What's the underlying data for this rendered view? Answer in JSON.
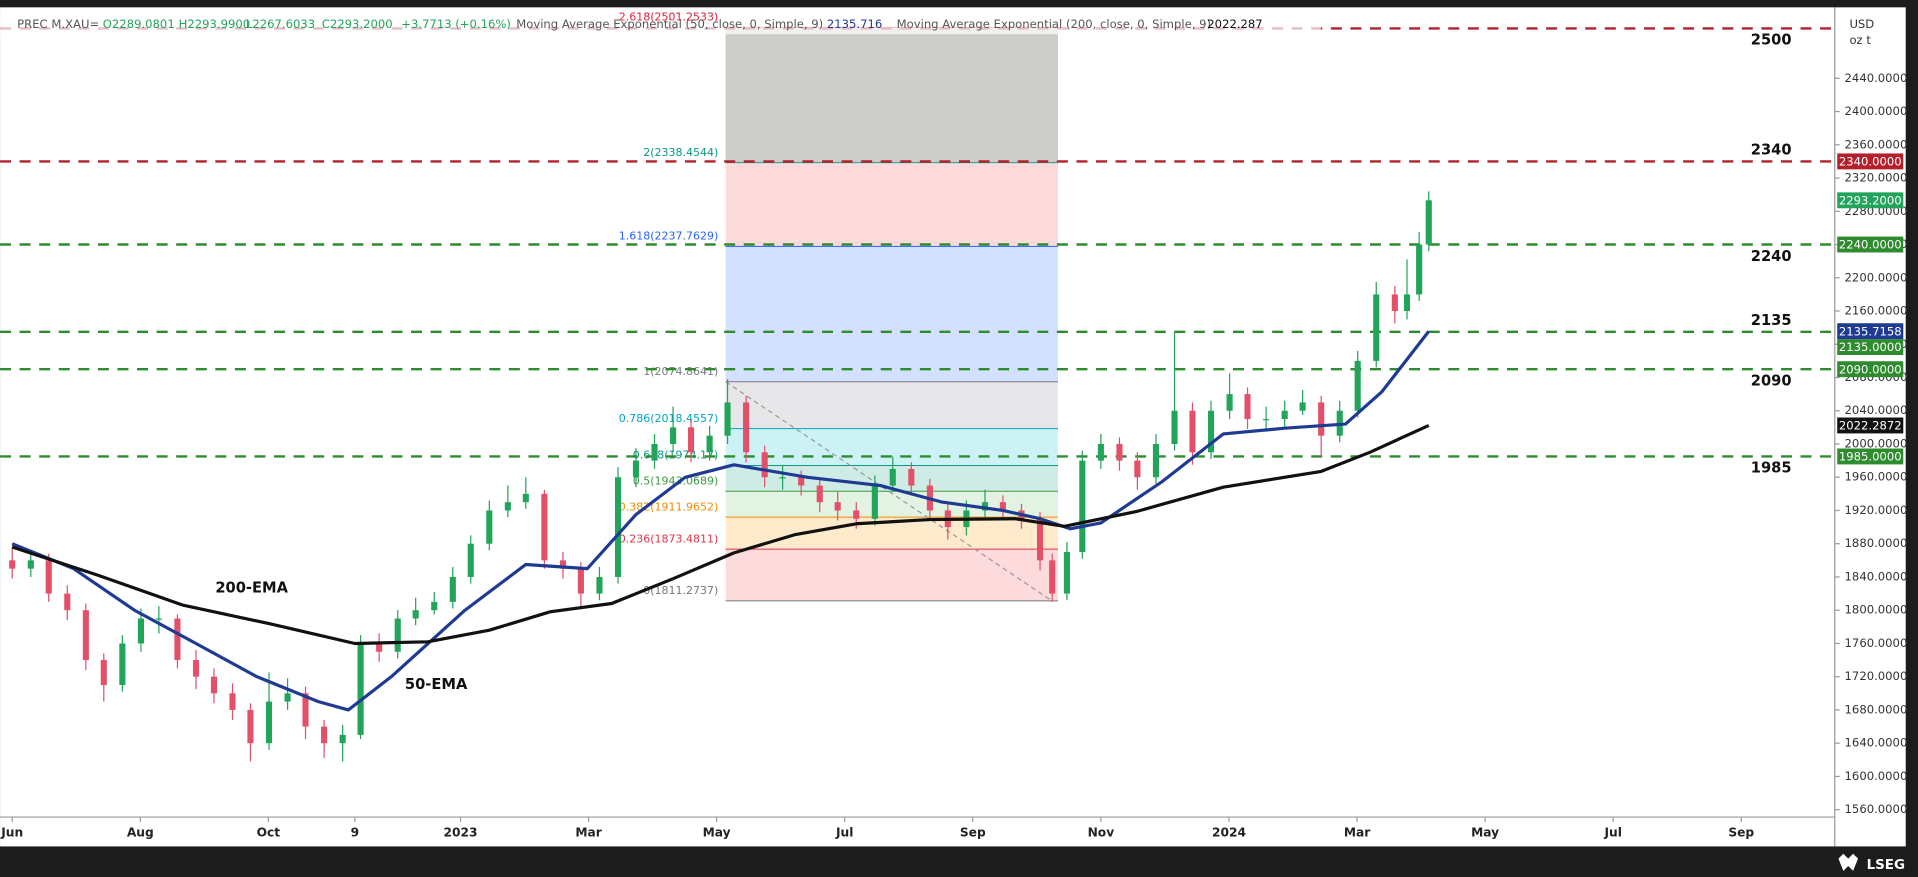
{
  "chart_data": {
    "type": "candlestick",
    "header": {
      "symbol": "PREC M.XAU=",
      "ohlc": [
        "O2289.0801",
        "H2293.9900",
        "L2267.6033",
        "C2293.2000",
        "+3.7713 (+0.16%)"
      ]
    },
    "unit": [
      "USD",
      "oz t"
    ],
    "brand": "LSEG",
    "xlim": [
      -0.19,
      28.46
    ],
    "ylim": [
      1551.1,
      2519.5
    ],
    "xticks": [
      {
        "value": 0,
        "label": "Jun"
      },
      {
        "value": 2,
        "label": "Aug"
      },
      {
        "value": 4,
        "label": "Oct"
      },
      {
        "value": 5.35,
        "label": "9"
      },
      {
        "value": 7,
        "label": "2023"
      },
      {
        "value": 9,
        "label": "Mar"
      },
      {
        "value": 11,
        "label": "May"
      },
      {
        "value": 13,
        "label": "Jul"
      },
      {
        "value": 15,
        "label": "Sep"
      },
      {
        "value": 17,
        "label": "Nov"
      },
      {
        "value": 19,
        "label": "2024"
      },
      {
        "value": 21,
        "label": "Mar"
      },
      {
        "value": 23,
        "label": "May"
      },
      {
        "value": 25,
        "label": "Jul"
      },
      {
        "value": 27,
        "label": "Sep"
      }
    ],
    "yticks": [
      {
        "value": 1560,
        "label": "1560.0000"
      },
      {
        "value": 1600,
        "label": "1600.0000"
      },
      {
        "value": 1640,
        "label": "1640.0000"
      },
      {
        "value": 1680,
        "label": "1680.0000"
      },
      {
        "value": 1720,
        "label": "1720.0000"
      },
      {
        "value": 1760,
        "label": "1760.0000"
      },
      {
        "value": 1800,
        "label": "1800.0000"
      },
      {
        "value": 1840,
        "label": "1840.0000"
      },
      {
        "value": 1880,
        "label": "1880.0000"
      },
      {
        "value": 1920,
        "label": "1920.0000"
      },
      {
        "value": 1960,
        "label": "1960.0000"
      },
      {
        "value": 2000,
        "label": "2000.0000"
      },
      {
        "value": 2040,
        "label": "2040.0000"
      },
      {
        "value": 2080,
        "label": "2080.0000"
      },
      {
        "value": 2120,
        "label": "2120.0000"
      },
      {
        "value": 2160,
        "label": "2160.0000"
      },
      {
        "value": 2200,
        "label": "2200.0000"
      },
      {
        "value": 2240,
        "label": "2240.0000"
      },
      {
        "value": 2280,
        "label": "2280.0000"
      },
      {
        "value": 2320,
        "label": "2320.0000"
      },
      {
        "value": 2360,
        "label": "2360.0000"
      },
      {
        "value": 2400,
        "label": "2400.0000"
      },
      {
        "value": 2440,
        "label": "2440.0000"
      }
    ],
    "candles": {
      "up_color": "#22a45a",
      "down_color": "#e2506a",
      "x": [
        0.0,
        0.29,
        0.57,
        0.86,
        1.15,
        1.43,
        1.72,
        2.01,
        2.29,
        2.58,
        2.87,
        3.15,
        3.44,
        3.72,
        4.01,
        4.3,
        4.58,
        4.87,
        5.16,
        5.44,
        5.73,
        6.02,
        6.3,
        6.59,
        6.88,
        7.16,
        7.45,
        7.74,
        8.02,
        8.31,
        8.6,
        8.88,
        9.17,
        9.46,
        9.74,
        10.03,
        10.32,
        10.6,
        10.89,
        11.17,
        11.46,
        11.75,
        12.03,
        12.32,
        12.61,
        12.89,
        13.18,
        13.47,
        13.75,
        14.04,
        14.33,
        14.61,
        14.9,
        15.19,
        15.47,
        15.76,
        16.05,
        16.24,
        16.47,
        16.71,
        17.0,
        17.29,
        17.57,
        17.86,
        18.15,
        18.43,
        18.72,
        19.01,
        19.29,
        19.58,
        19.87,
        20.15,
        20.44,
        20.73,
        21.01,
        21.3,
        21.59,
        21.78,
        21.97,
        22.12
      ],
      "open": [
        1860,
        1850,
        1860,
        1820,
        1800,
        1740,
        1710,
        1760,
        1790,
        1790,
        1740,
        1720,
        1700,
        1680,
        1640,
        1690,
        1700,
        1660,
        1640,
        1650,
        1760,
        1750,
        1790,
        1800,
        1810,
        1840,
        1880,
        1920,
        1930,
        1940,
        1860,
        1850,
        1820,
        1840,
        1960,
        1980,
        2000,
        2020,
        1990,
        2010,
        2050,
        1990,
        1960,
        1960,
        1950,
        1930,
        1920,
        1910,
        1950,
        1970,
        1950,
        1920,
        1900,
        1920,
        1930,
        1920,
        1910,
        1860,
        1820,
        1870,
        1980,
        2000,
        1980,
        1960,
        2000,
        2040,
        1990,
        2040,
        2060,
        2030,
        2030,
        2040,
        2050,
        2010,
        2040,
        2100,
        2180,
        2160,
        2180,
        2240
      ],
      "high": [
        1875,
        1872,
        1868,
        1830,
        1808,
        1748,
        1770,
        1802,
        1805,
        1795,
        1752,
        1730,
        1712,
        1688,
        1725,
        1718,
        1708,
        1668,
        1662,
        1770,
        1772,
        1800,
        1815,
        1822,
        1852,
        1890,
        1932,
        1950,
        1960,
        1945,
        1870,
        1858,
        1852,
        1972,
        1995,
        2012,
        2045,
        2030,
        2022,
        2078,
        2058,
        1998,
        1975,
        1968,
        1958,
        1942,
        1930,
        1962,
        1985,
        1978,
        1958,
        1928,
        1932,
        1945,
        1938,
        1928,
        1918,
        1868,
        1882,
        1992,
        2012,
        2008,
        1990,
        2012,
        2135,
        2050,
        2052,
        2085,
        2068,
        2045,
        2052,
        2065,
        2058,
        2052,
        2112,
        2195,
        2190,
        2222,
        2255,
        2304
      ],
      "low": [
        1838,
        1840,
        1810,
        1788,
        1728,
        1690,
        1702,
        1750,
        1772,
        1730,
        1705,
        1688,
        1668,
        1618,
        1632,
        1680,
        1645,
        1622,
        1618,
        1645,
        1738,
        1742,
        1782,
        1795,
        1802,
        1832,
        1872,
        1912,
        1922,
        1850,
        1838,
        1805,
        1812,
        1832,
        1948,
        1970,
        1990,
        1978,
        1980,
        2000,
        1978,
        1948,
        1945,
        1938,
        1918,
        1908,
        1898,
        1902,
        1942,
        1938,
        1908,
        1885,
        1890,
        1912,
        1908,
        1898,
        1848,
        1810,
        1812,
        1862,
        1970,
        1968,
        1945,
        1952,
        1992,
        1975,
        1982,
        2030,
        2018,
        2015,
        2020,
        2035,
        1985,
        2002,
        2032,
        2092,
        2145,
        2150,
        2172,
        2232
      ],
      "close": [
        1850,
        1860,
        1820,
        1800,
        1740,
        1710,
        1760,
        1790,
        1790,
        1740,
        1720,
        1700,
        1680,
        1640,
        1690,
        1700,
        1660,
        1640,
        1650,
        1760,
        1750,
        1790,
        1800,
        1810,
        1840,
        1880,
        1920,
        1930,
        1940,
        1860,
        1850,
        1820,
        1840,
        1960,
        1980,
        2000,
        2020,
        1990,
        2010,
        2050,
        1990,
        1960,
        1960,
        1950,
        1930,
        1920,
        1910,
        1950,
        1970,
        1950,
        1920,
        1900,
        1920,
        1930,
        1920,
        1910,
        1860,
        1820,
        1870,
        1980,
        2000,
        1980,
        1960,
        2000,
        2040,
        1990,
        2040,
        2060,
        2030,
        2030,
        2040,
        2050,
        2010,
        2040,
        2100,
        2180,
        2160,
        2180,
        2240,
        2293.2
      ]
    },
    "series": [
      {
        "name": "Moving Average Exponential (50, close, 0, Simple, 9)",
        "legend_value": "2135.716",
        "annotation": "50-EMA",
        "color": "#1f3a93",
        "x": [
          0,
          0.96,
          1.91,
          2.87,
          3.82,
          4.78,
          5.25,
          5.92,
          7.07,
          8.02,
          8.98,
          9.74,
          10.51,
          11.27,
          12.42,
          13.56,
          14.52,
          15.47,
          16.05,
          16.52,
          17.0,
          17.96,
          18.91,
          19.87,
          20.82,
          21.39,
          22.12
        ],
        "values": [
          1880,
          1850,
          1800,
          1760,
          1720,
          1690,
          1680,
          1720,
          1800,
          1855,
          1850,
          1915,
          1960,
          1975,
          1960,
          1950,
          1930,
          1920,
          1910,
          1898,
          1905,
          1955,
          2012,
          2019,
          2024,
          2063,
          2135.716
        ]
      },
      {
        "name": "Moving Average Exponential (200, close, 0, Simple, 9)",
        "legend_value": "2022.287",
        "annotation": "200-EMA",
        "color": "#111111",
        "x": [
          0,
          1.34,
          2.67,
          4.01,
          5.35,
          6.49,
          7.45,
          8.4,
          9.36,
          10.32,
          11.27,
          12.23,
          13.18,
          14.33,
          15.66,
          16.43,
          17.57,
          18.91,
          20.44,
          21.2,
          22.12
        ],
        "values": [
          1876,
          1842,
          1806,
          1784,
          1760,
          1762,
          1776,
          1798,
          1808,
          1838,
          1869,
          1891,
          1904,
          1909,
          1910,
          1901,
          1919,
          1948,
          1967,
          1990,
          2022.287
        ]
      }
    ],
    "horizontal_lines": {
      "values": [
        2500,
        2340,
        2240,
        2135,
        2090,
        1985
      ],
      "colors": [
        "#b3202c",
        "#b3202c",
        "#2e8b2e",
        "#2e8b2e",
        "#2e8b2e",
        "#2e8b2e"
      ]
    },
    "fibonacci": {
      "x_range": [
        11.14,
        16.33
      ],
      "levels": [
        {
          "value": 1811.2737,
          "label": "0(1811.2737)",
          "color": "#777777",
          "fill": "rgba(242,54,69,0.18)"
        },
        {
          "value": 1873.4811,
          "label": "0.236(1873.4811)",
          "color": "#e0324a",
          "fill": "rgba(255,152,0,0.2)"
        },
        {
          "value": 1911.9652,
          "label": "0.382(1911.9652)",
          "color": "#f08c00",
          "fill": "rgba(76,175,80,0.16)"
        },
        {
          "value": 1943.0689,
          "label": "0.5(1943.0689)",
          "color": "#3c9a40",
          "fill": "rgba(8,153,129,0.2)"
        },
        {
          "value": 1974.17,
          "label": "0.618(1974.17)",
          "color": "#089981",
          "fill": "rgba(0,188,212,0.2)"
        },
        {
          "value": 2018.4557,
          "label": "0.786(2018.4557)",
          "color": "#00a5c4",
          "fill": "rgba(120,123,134,0.18)"
        },
        {
          "value": 2074.8641,
          "label": "1(2074.8641)",
          "color": "#787b86",
          "fill": "rgba(41,98,255,0.2)"
        },
        {
          "value": 2237.7629,
          "label": "1.618(2237.7629)",
          "color": "#2962ff",
          "fill": "rgba(242,54,69,0.18)"
        },
        {
          "value": 2338.4544,
          "label": "2(2338.4544)",
          "color": "#089981",
          "fill": "rgba(120,123,110,0.38)"
        },
        {
          "value": 2501.2533,
          "label": "2.618(2501.2533)",
          "color": "#e0324a"
        }
      ]
    },
    "price_badges": [
      {
        "value": 2340,
        "label": "2340.0000",
        "color": "#b3202c"
      },
      {
        "value": 2293.2,
        "label": "2293.2000",
        "color": "#22a45a"
      },
      {
        "value": 2240,
        "label": "2240.0000",
        "color": "#2e8b2e"
      },
      {
        "value": 2135.7158,
        "label": "2135.7158",
        "color": "#1f3a93"
      },
      {
        "value": 2135,
        "label": "2135.0000",
        "color": "#2e8b2e"
      },
      {
        "value": 2090,
        "label": "2090.0000",
        "color": "#2e8b2e"
      },
      {
        "value": 2022.2872,
        "label": "2022.2872",
        "color": "#111111"
      },
      {
        "value": 1985,
        "label": "1985.0000",
        "color": "#2e8b2e"
      }
    ]
  }
}
